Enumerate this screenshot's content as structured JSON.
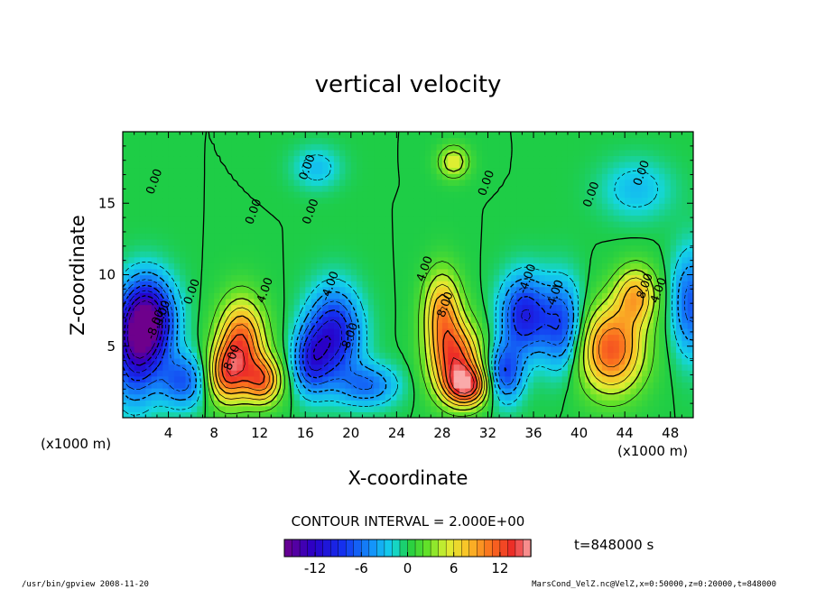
{
  "chart_data": {
    "type": "heatmap",
    "title": "vertical velocity",
    "xlabel": "X-coordinate",
    "ylabel": "Z-coordinate",
    "x_unit": "(x1000 m)",
    "x_unit_right": "(x1000 m)",
    "xlim": [
      0,
      50
    ],
    "ylim": [
      0,
      20
    ],
    "x_ticks": [
      4,
      8,
      12,
      16,
      20,
      24,
      28,
      32,
      36,
      40,
      44,
      48
    ],
    "y_ticks": [
      5,
      10,
      15
    ],
    "contour_interval_label": "CONTOUR INTERVAL = 2.000E+00",
    "time_label": "t=848000 s",
    "colorbar": {
      "range": [
        -16,
        16
      ],
      "ticks": [
        -12,
        -6,
        0,
        6,
        12
      ]
    },
    "contour_labels": [
      {
        "text": "0.00",
        "x": 2.8,
        "y": 16.5
      },
      {
        "text": "0.00",
        "x": 11.5,
        "y": 14.4
      },
      {
        "text": "0.00",
        "x": 16.5,
        "y": 14.4
      },
      {
        "text": "0.00",
        "x": 16.2,
        "y": 17.5
      },
      {
        "text": "0.00",
        "x": 31.9,
        "y": 16.4
      },
      {
        "text": "0.00",
        "x": 41.1,
        "y": 15.6
      },
      {
        "text": "0.00",
        "x": 45.5,
        "y": 17.1
      },
      {
        "text": "0.00",
        "x": 6.1,
        "y": 8.8
      },
      {
        "text": "0.00",
        "x": 3.5,
        "y": 7.3
      },
      {
        "text": "-8.00",
        "x": 2.9,
        "y": 6.5
      },
      {
        "text": "8.00",
        "x": 9.6,
        "y": 4.2
      },
      {
        "text": "4.00",
        "x": 12.5,
        "y": 8.9
      },
      {
        "text": "-4.00",
        "x": 18.2,
        "y": 9.2
      },
      {
        "text": "-8.00",
        "x": 19.9,
        "y": 5.6
      },
      {
        "text": "4.00",
        "x": 26.5,
        "y": 10.4
      },
      {
        "text": "8.00",
        "x": 28.3,
        "y": 7.9
      },
      {
        "text": "-4.00",
        "x": 35.5,
        "y": 9.7
      },
      {
        "text": "-4.00",
        "x": 37.9,
        "y": 8.6
      },
      {
        "text": "8.00",
        "x": 45.8,
        "y": 9.2
      },
      {
        "text": "4.00",
        "x": 47.0,
        "y": 8.9
      }
    ],
    "cells": [
      {
        "x": 2.2,
        "z": 6.8,
        "w": -15,
        "sx": 2.2,
        "sz": 2.8
      },
      {
        "x": 1.0,
        "z": 4.5,
        "w": -9,
        "sx": 2.0,
        "sz": 3.5
      },
      {
        "x": 5.2,
        "z": 2.6,
        "w": -7,
        "sx": 2.0,
        "sz": 1.8
      },
      {
        "x": 10.4,
        "z": 5.2,
        "w": 12,
        "sx": 2.0,
        "sz": 3.0
      },
      {
        "x": 12.3,
        "z": 2.6,
        "w": 10,
        "sx": 1.6,
        "sz": 1.6
      },
      {
        "x": 9.0,
        "z": 3.0,
        "w": 9,
        "sx": 1.6,
        "sz": 2.0
      },
      {
        "x": 18.5,
        "z": 5.8,
        "w": -11,
        "sx": 2.2,
        "sz": 3.0
      },
      {
        "x": 16.5,
        "z": 4.0,
        "w": -8,
        "sx": 1.5,
        "sz": 2.2
      },
      {
        "x": 21.5,
        "z": 2.3,
        "w": -6,
        "sx": 2.5,
        "sz": 1.4
      },
      {
        "x": 29.2,
        "z": 4.0,
        "w": 12,
        "sx": 2.2,
        "sz": 2.6
      },
      {
        "x": 28.0,
        "z": 7.5,
        "w": 9,
        "sx": 1.6,
        "sz": 2.8
      },
      {
        "x": 30.2,
        "z": 2.2,
        "w": 11,
        "sx": 1.8,
        "sz": 1.3
      },
      {
        "x": 35.2,
        "z": 7.2,
        "w": -10,
        "sx": 2.0,
        "sz": 2.6
      },
      {
        "x": 33.5,
        "z": 3.2,
        "w": -8,
        "sx": 1.5,
        "sz": 2.0
      },
      {
        "x": 38.5,
        "z": 6.5,
        "w": -8,
        "sx": 1.8,
        "sz": 3.0
      },
      {
        "x": 42.8,
        "z": 4.8,
        "w": 12,
        "sx": 2.8,
        "sz": 3.0
      },
      {
        "x": 45.0,
        "z": 8.6,
        "w": 8,
        "sx": 1.8,
        "sz": 2.0
      },
      {
        "x": 49.8,
        "z": 8.0,
        "w": -7,
        "sx": 1.6,
        "sz": 3.5
      },
      {
        "x": 29.0,
        "z": 17.9,
        "w": 6,
        "sx": 1.3,
        "sz": 1.1
      },
      {
        "x": 17.0,
        "z": 17.5,
        "w": -3,
        "sx": 2.0,
        "sz": 1.4
      },
      {
        "x": 45.0,
        "z": 16.0,
        "w": -3,
        "sx": 3.0,
        "sz": 2.0
      }
    ]
  },
  "footer": {
    "left": "/usr/bin/gpview  2008-11-20",
    "right": "MarsCond_VelZ.nc@VelZ,x=0:50000,z=0:20000,t=848000"
  }
}
